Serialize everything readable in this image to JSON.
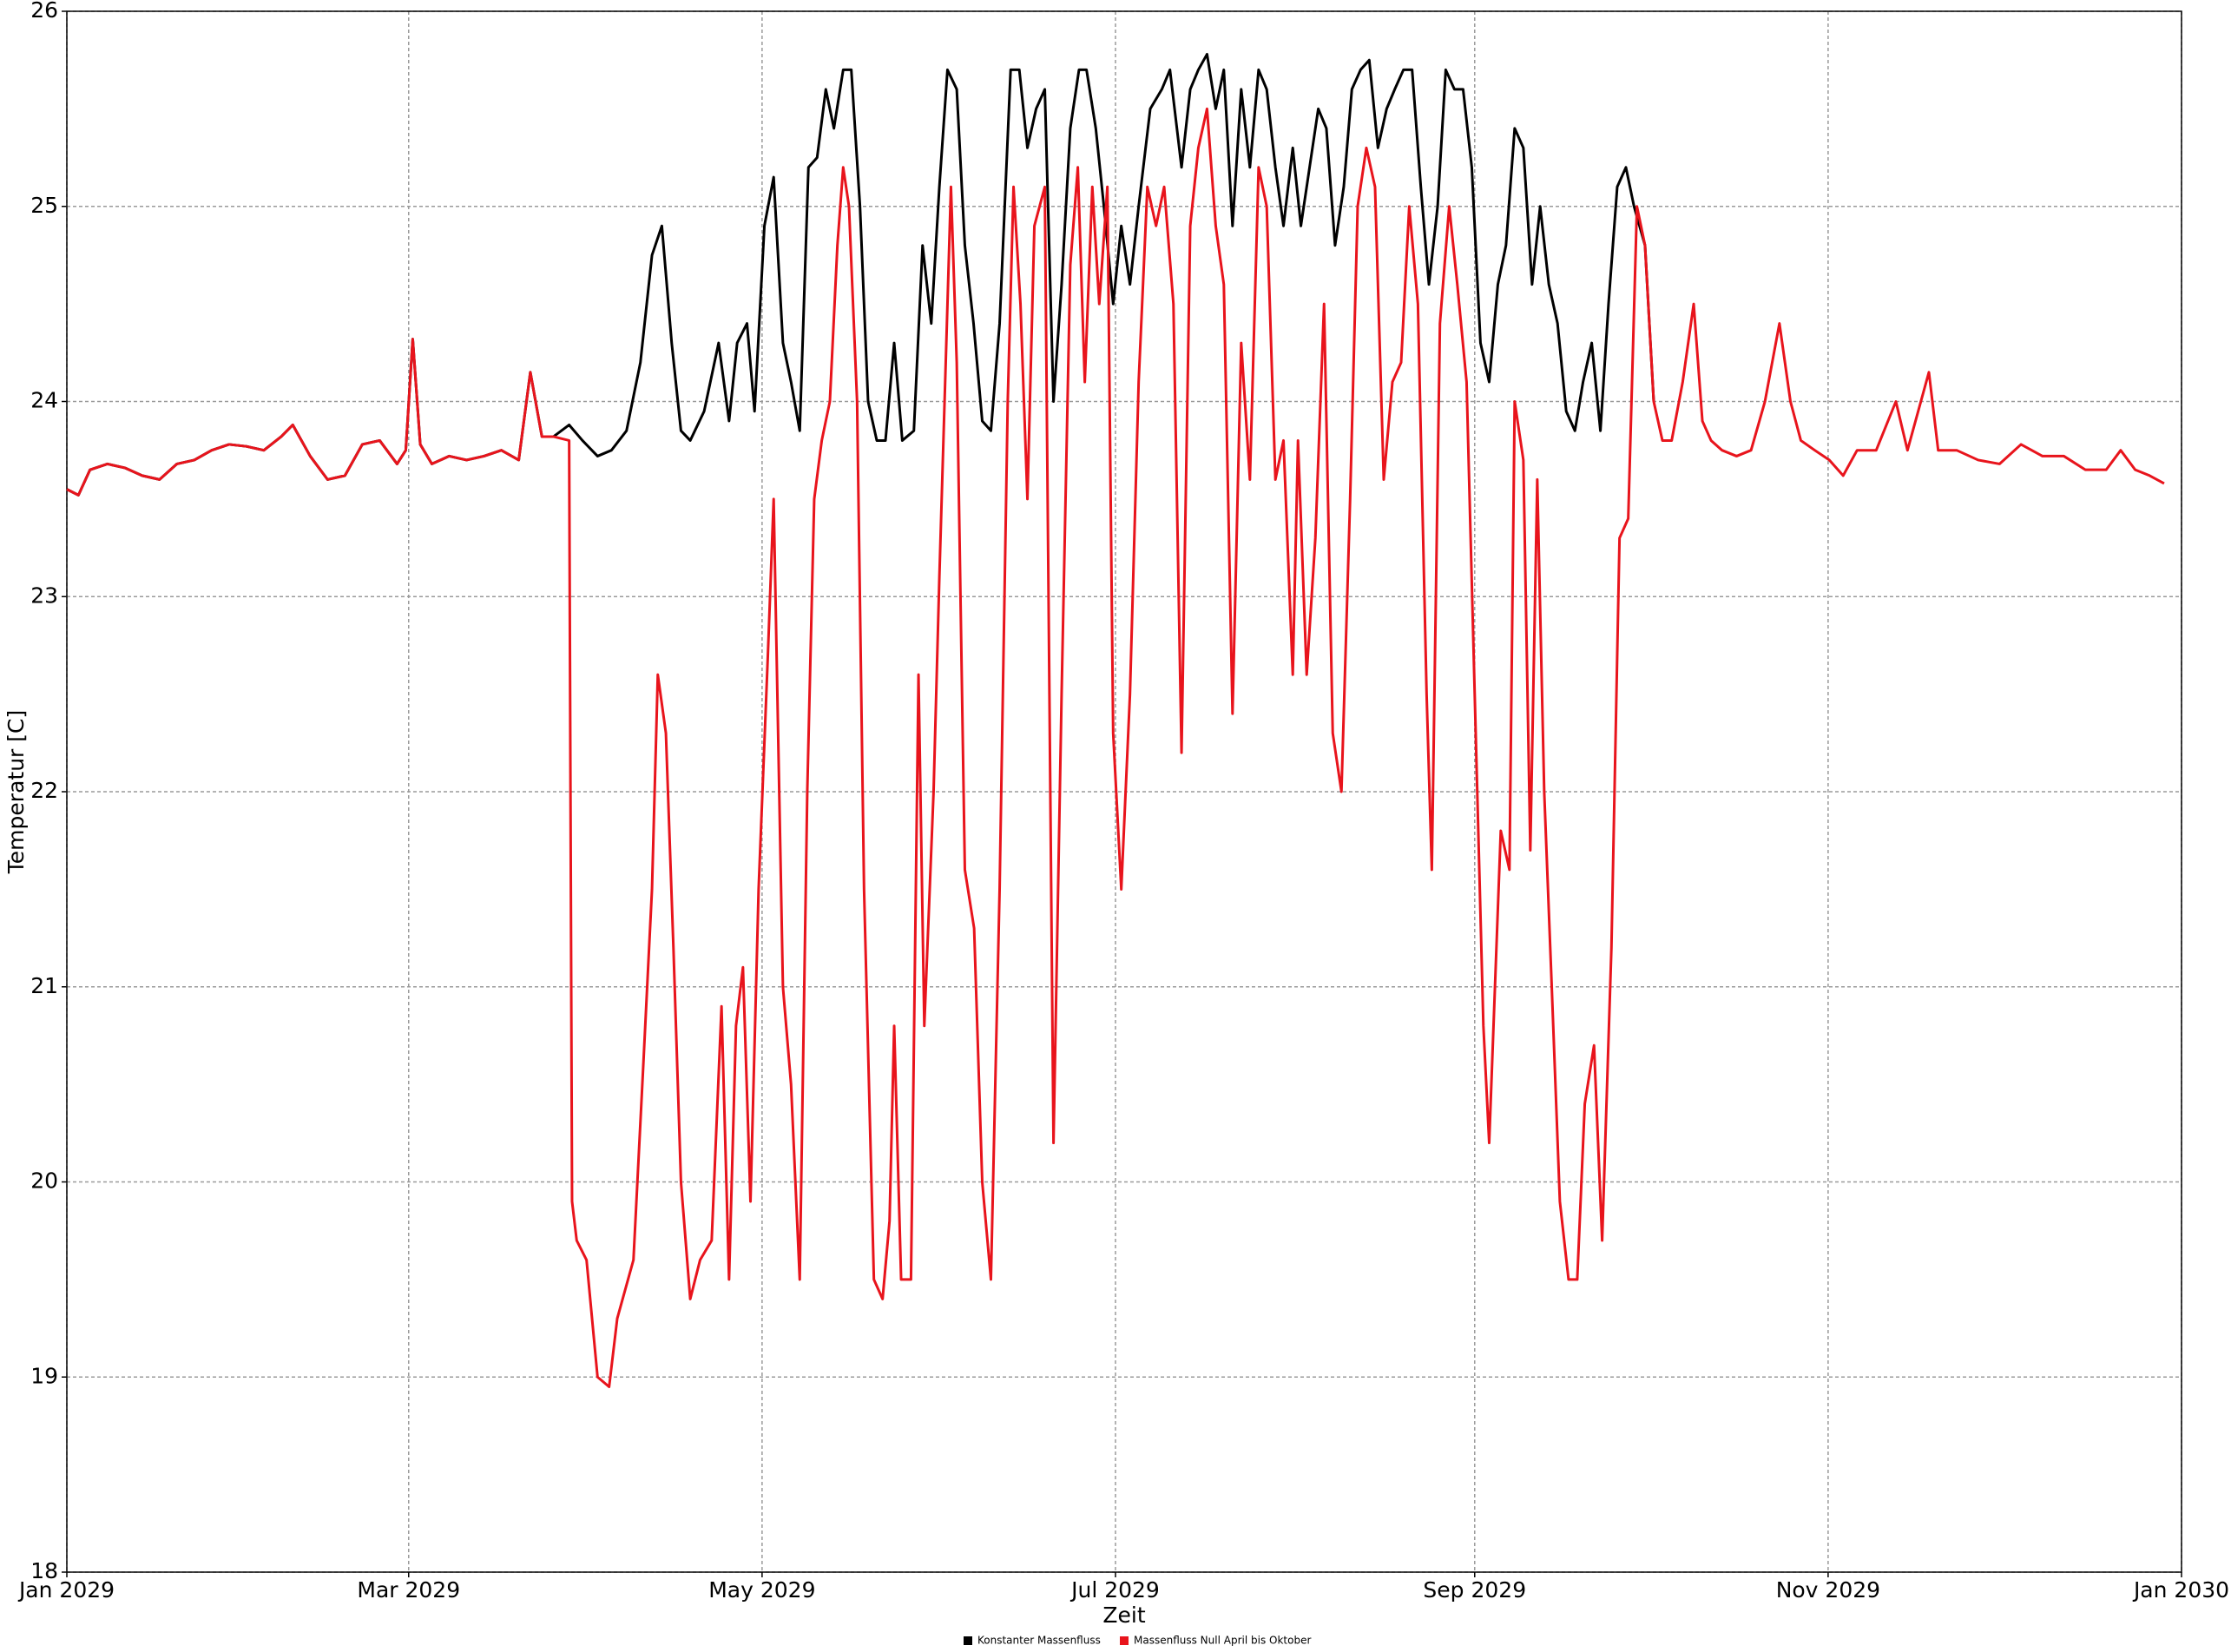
{
  "chart_data": {
    "type": "line",
    "xlabel": "Zeit",
    "ylabel": "Temperatur [C]",
    "xlim": [
      0,
      365
    ],
    "xticks": [
      {
        "value": 0,
        "label": "Jan 2029"
      },
      {
        "value": 59,
        "label": "Mar 2029"
      },
      {
        "value": 120,
        "label": "May 2029"
      },
      {
        "value": 181,
        "label": "Jul 2029"
      },
      {
        "value": 243,
        "label": "Sep 2029"
      },
      {
        "value": 304,
        "label": "Nov 2029"
      },
      {
        "value": 365,
        "label": "Jan 2030"
      }
    ],
    "ylim": [
      18,
      26
    ],
    "yticks": [
      18,
      19,
      20,
      21,
      22,
      23,
      24,
      25,
      26
    ],
    "grid": true,
    "legend": "bottom",
    "series": [
      {
        "name": "Konstanter Massenfluss",
        "color": "#000000",
        "x": [
          0,
          2,
          4,
          7,
          10,
          13,
          16,
          19,
          22,
          25,
          28,
          31,
          34,
          37,
          39,
          42,
          45,
          48,
          51,
          54,
          57,
          58.5,
          59.7,
          61,
          63,
          66,
          69,
          72,
          75,
          78,
          80,
          82,
          84,
          86.7,
          89,
          91.6,
          94,
          96.6,
          99,
          101,
          102.7,
          104.4,
          106,
          107.6,
          110,
          112.5,
          114.3,
          115.7,
          117.4,
          118.7,
          120.4,
          122,
          123.6,
          125,
          126.5,
          128,
          129.5,
          131,
          132.4,
          134,
          135.4,
          136.9,
          138.3,
          139.8,
          141.3,
          142.8,
          144.2,
          146.2,
          147.7,
          149.2,
          150.6,
          152,
          153.6,
          155,
          156.5,
          158,
          159.5,
          161,
          162.9,
          164.4,
          165.8,
          167.3,
          168.8,
          170.3,
          171.7,
          173.2,
          174.7,
          176,
          177.6,
          179,
          180.6,
          182,
          183.5,
          185,
          187,
          189,
          190.4,
          192.4,
          193.9,
          195.3,
          196.8,
          198.3,
          199.7,
          201.2,
          202.7,
          204.2,
          205.7,
          207.1,
          208.6,
          210,
          211.6,
          213,
          214.5,
          216,
          217.4,
          218.9,
          220.4,
          221.8,
          223.3,
          224.8,
          226.3,
          227.8,
          229.2,
          230.7,
          232.2,
          233.7,
          235.1,
          236.6,
          238,
          239.5,
          241,
          242.5,
          244,
          245.5,
          247,
          248.4,
          249.9,
          251.4,
          252.9,
          254.3,
          255.8,
          257.3,
          258.8,
          260.3,
          261.7,
          263.2,
          264.7,
          266.1,
          267.6,
          269.1,
          270.5,
          272.4,
          273.9
        ],
        "values": [
          23.55,
          23.52,
          23.65,
          23.68,
          23.66,
          23.62,
          23.6,
          23.68,
          23.7,
          23.75,
          23.78,
          23.77,
          23.75,
          23.82,
          23.88,
          23.72,
          23.6,
          23.62,
          23.78,
          23.8,
          23.68,
          23.75,
          24.32,
          23.78,
          23.68,
          23.72,
          23.7,
          23.72,
          23.75,
          23.7,
          24.15,
          23.82,
          23.82,
          23.88,
          23.8,
          23.72,
          23.75,
          23.85,
          24.2,
          24.75,
          24.9,
          24.3,
          23.85,
          23.8,
          23.95,
          24.3,
          23.9,
          24.3,
          24.4,
          23.95,
          24.9,
          25.15,
          24.3,
          24.1,
          23.85,
          25.2,
          25.25,
          25.6,
          25.4,
          25.7,
          25.7,
          25.0,
          24.0,
          23.8,
          23.8,
          24.3,
          23.8,
          23.85,
          24.8,
          24.4,
          25.1,
          25.7,
          25.6,
          24.8,
          24.4,
          23.9,
          23.85,
          24.4,
          25.7,
          25.7,
          25.3,
          25.5,
          25.6,
          24.0,
          24.6,
          25.4,
          25.7,
          25.7,
          25.4,
          25.0,
          24.5,
          24.9,
          24.6,
          25.0,
          25.5,
          25.6,
          25.7,
          25.2,
          25.6,
          25.7,
          25.78,
          25.5,
          25.7,
          24.9,
          25.6,
          25.2,
          25.7,
          25.6,
          25.2,
          24.9,
          25.3,
          24.9,
          25.2,
          25.5,
          25.4,
          24.8,
          25.1,
          25.6,
          25.7,
          25.75,
          25.3,
          25.5,
          25.6,
          25.7,
          25.7,
          25.1,
          24.6,
          25.0,
          25.7,
          25.6,
          25.6,
          25.2,
          24.3,
          24.1,
          24.6,
          24.8,
          25.4,
          25.3,
          24.6,
          25.0,
          24.6,
          24.4,
          23.95,
          23.85,
          24.1,
          24.3,
          23.85,
          24.5,
          25.1,
          25.2,
          25.0,
          24.8,
          24.0
        ]
      },
      {
        "name": "Massenfluss Null April bis Oktober",
        "color": "#e8141c",
        "x": [
          0,
          2,
          4,
          7,
          10,
          13,
          16,
          19,
          22,
          25,
          28,
          31,
          34,
          37,
          39,
          42,
          45,
          48,
          51,
          54,
          57,
          58.5,
          59.7,
          61,
          63,
          66,
          69,
          72,
          75,
          78,
          80,
          82,
          84,
          86.7,
          87.2,
          88,
          89.7,
          91.6,
          93.6,
          95,
          97.8,
          99.5,
          101,
          102,
          103.4,
          104.7,
          106,
          107.6,
          109.3,
          111.3,
          113,
          114.3,
          115.5,
          116.7,
          118,
          119.4,
          121,
          122,
          123.6,
          125,
          126.5,
          127.8,
          129,
          130.3,
          131.7,
          133,
          134,
          135,
          136.4,
          137.6,
          139.3,
          140.8,
          142,
          142.8,
          144,
          145.7,
          147,
          148,
          149.6,
          150.6,
          152.6,
          153.6,
          155,
          156.6,
          158,
          159.5,
          161,
          162.4,
          163.4,
          164.6,
          165.8,
          167,
          168.8,
          170.3,
          171.7,
          173.2,
          174.5,
          175.7,
          177,
          178.2,
          179.6,
          180.6,
          182,
          183.5,
          185,
          186.5,
          188,
          189.4,
          191,
          192.4,
          193.9,
          195.3,
          196.8,
          198.3,
          199.7,
          201.2,
          202.7,
          204.2,
          205.7,
          207.1,
          208.6,
          210,
          211.6,
          212.5,
          214,
          215.5,
          217,
          218.5,
          220,
          221.5,
          222.8,
          224.3,
          225.8,
          227.3,
          228.8,
          230.3,
          231.7,
          233.2,
          234.7,
          235.6,
          237,
          238.6,
          240,
          241.6,
          243,
          244.5,
          245.5,
          246.5,
          247.5,
          249,
          249.9,
          251.4,
          252.6,
          253.8,
          255,
          256.3,
          257.7,
          259.2,
          260.7,
          262,
          263.6,
          265,
          266.6,
          268,
          269.5,
          271,
          272.4,
          273.9,
          275.4,
          277,
          278.9,
          280.8,
          282.3,
          283.8,
          285.7,
          288.2,
          290.7,
          293.1,
          295.6,
          297.5,
          299.3,
          301.7,
          304.2,
          306.6,
          309,
          312.3,
          315.7,
          317.7,
          321.4,
          323,
          326.2,
          329.9,
          333.6,
          337.3,
          341,
          344.7,
          348.4,
          352,
          354.5,
          357,
          359.5,
          362
        ],
        "values": [
          23.55,
          23.52,
          23.65,
          23.68,
          23.66,
          23.62,
          23.6,
          23.68,
          23.7,
          23.75,
          23.78,
          23.77,
          23.75,
          23.82,
          23.88,
          23.72,
          23.6,
          23.62,
          23.78,
          23.8,
          23.68,
          23.75,
          24.32,
          23.78,
          23.68,
          23.72,
          23.7,
          23.72,
          23.75,
          23.7,
          24.15,
          23.82,
          23.82,
          23.8,
          19.9,
          19.7,
          19.6,
          19.0,
          18.95,
          19.3,
          19.6,
          20.6,
          21.5,
          22.6,
          22.3,
          21.2,
          20.0,
          19.4,
          19.6,
          19.7,
          20.9,
          19.5,
          20.8,
          21.1,
          19.9,
          21.5,
          22.7,
          23.5,
          21.0,
          20.5,
          19.5,
          22.0,
          23.5,
          23.8,
          24.0,
          24.8,
          25.2,
          25.0,
          24.0,
          21.5,
          19.5,
          19.4,
          19.8,
          20.8,
          19.5,
          19.5,
          22.6,
          20.8,
          22.0,
          23.1,
          25.1,
          24.2,
          21.6,
          21.3,
          20.0,
          19.5,
          21.5,
          24.0,
          25.1,
          24.5,
          23.5,
          24.9,
          25.1,
          20.2,
          22.5,
          24.7,
          25.2,
          24.1,
          25.1,
          24.5,
          25.1,
          22.3,
          21.5,
          22.5,
          24.1,
          25.1,
          24.9,
          25.1,
          24.5,
          22.2,
          24.9,
          25.3,
          25.5,
          24.9,
          24.6,
          22.4,
          24.3,
          23.6,
          25.2,
          25.0,
          23.6,
          23.8,
          22.6,
          23.8,
          22.6,
          23.3,
          24.5,
          22.3,
          22.0,
          23.5,
          25.0,
          25.3,
          25.1,
          23.6,
          24.1,
          24.2,
          25.0,
          24.5,
          22.5,
          21.6,
          24.4,
          25.0,
          24.6,
          24.1,
          22.5,
          20.8,
          20.2,
          21.0,
          21.8,
          21.6,
          24.0,
          23.7,
          21.7,
          23.6,
          22.0,
          21.0,
          19.9,
          19.5,
          19.5,
          20.4,
          20.7,
          19.7,
          21.2,
          23.3,
          23.4,
          25.0,
          24.8,
          24.0,
          23.8,
          23.8,
          24.1,
          24.5,
          23.9,
          23.8,
          23.75,
          23.72,
          23.75,
          24.0,
          24.4,
          24.0,
          23.8,
          23.75,
          23.7,
          23.62,
          23.75,
          23.75,
          24.0,
          23.75,
          24.15,
          23.75,
          23.75,
          23.7,
          23.68,
          23.78,
          23.72,
          23.72,
          23.65,
          23.65,
          23.75,
          23.65,
          23.62,
          23.58
        ]
      }
    ]
  }
}
